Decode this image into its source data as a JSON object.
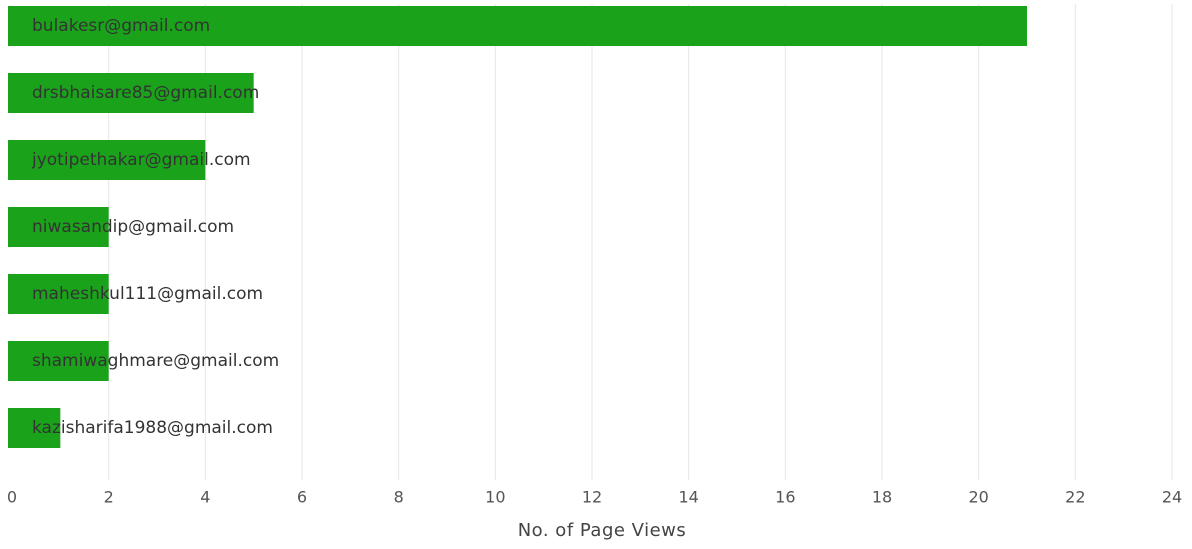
{
  "chart_data": {
    "type": "bar",
    "orientation": "horizontal",
    "categories": [
      "bulakesr@gmail.com",
      "drsbhaisare85@gmail.com",
      "jyotipethakar@gmail.com",
      "niwasandip@gmail.com",
      "maheshkul111@gmail.com",
      "shamiwaghmare@gmail.com",
      "kazisharifa1988@gmail.com"
    ],
    "values": [
      21,
      5,
      4,
      2,
      2,
      2,
      1
    ],
    "xlabel": "No. of Page Views",
    "ylabel": "",
    "xlim": [
      0,
      24
    ],
    "xticks": [
      0,
      2,
      4,
      6,
      8,
      10,
      12,
      14,
      16,
      18,
      20,
      22,
      24
    ],
    "grid": true,
    "legend": "none",
    "bar_color": "#1aa31a"
  }
}
